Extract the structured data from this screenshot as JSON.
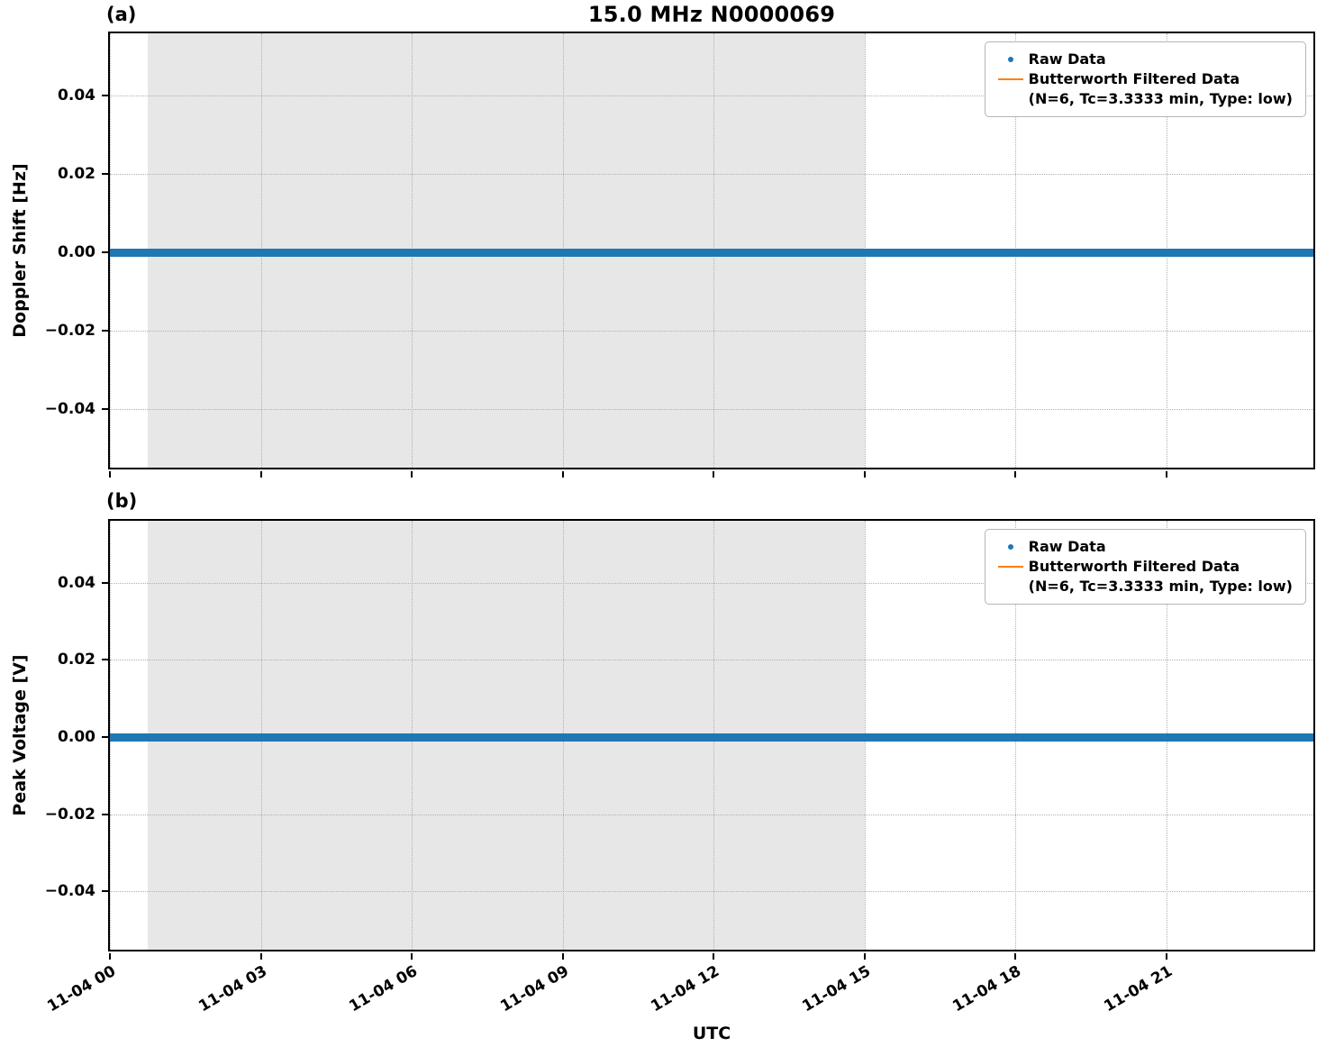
{
  "figure": {
    "title": "15.0 MHz N0000069",
    "xlabel": "UTC",
    "background": "#ffffff"
  },
  "colors": {
    "raw": "#1f77b4",
    "filtered": "#ff7f0e",
    "shade": "#e7e7e7",
    "grid": "#b0b0b0",
    "axis": "#000000"
  },
  "legend": {
    "entries": [
      {
        "marker": "dot",
        "color": "#1f77b4",
        "label": "Raw Data"
      },
      {
        "marker": "line",
        "color": "#ff7f0e",
        "label": "Butterworth Filtered Data",
        "sublabel": "(N=6, Tc=3.3333 min, Type: low)"
      }
    ]
  },
  "chart_data": [
    {
      "type": "scatter",
      "panel_label": "(a)",
      "title": "15.0 MHz N0000069",
      "xlabel": "UTC",
      "ylabel": "Doppler Shift [Hz]",
      "x_tick_labels": [
        "11-04 00",
        "11-04 03",
        "11-04 06",
        "11-04 09",
        "11-04 12",
        "11-04 15",
        "11-04 18",
        "11-04 21"
      ],
      "x_tick_hours": [
        0,
        3,
        6,
        9,
        12,
        15,
        18,
        21
      ],
      "xlim_hours": [
        0,
        24
      ],
      "y_tick_labels": [
        "0.04",
        "0.02",
        "0.00",
        "−0.02",
        "−0.04"
      ],
      "y_tick_values": [
        0.04,
        0.02,
        0.0,
        -0.02,
        -0.04
      ],
      "ylim": [
        -0.056,
        0.056
      ],
      "grid": true,
      "legend_position": "upper right",
      "shaded_region_hours": [
        0.75,
        15
      ],
      "series": [
        {
          "name": "Raw Data",
          "type": "scatter",
          "color": "#1f77b4",
          "y_constant": 0.0,
          "x_span_hours": [
            0,
            24
          ]
        },
        {
          "name": "Butterworth Filtered Data (N=6, Tc=3.3333 min, Type: low)",
          "type": "line",
          "color": "#ff7f0e",
          "y_constant": 0.0,
          "x_span_hours": [
            0,
            24
          ]
        }
      ]
    },
    {
      "type": "scatter",
      "panel_label": "(b)",
      "title": "",
      "xlabel": "UTC",
      "ylabel": "Peak Voltage [V]",
      "x_tick_labels": [
        "11-04 00",
        "11-04 03",
        "11-04 06",
        "11-04 09",
        "11-04 12",
        "11-04 15",
        "11-04 18",
        "11-04 21"
      ],
      "x_tick_hours": [
        0,
        3,
        6,
        9,
        12,
        15,
        18,
        21
      ],
      "xlim_hours": [
        0,
        24
      ],
      "y_tick_labels": [
        "0.04",
        "0.02",
        "0.00",
        "−0.02",
        "−0.04"
      ],
      "y_tick_values": [
        0.04,
        0.02,
        0.0,
        -0.02,
        -0.04
      ],
      "ylim": [
        -0.056,
        0.056
      ],
      "grid": true,
      "legend_position": "upper right",
      "shaded_region_hours": [
        0.75,
        15
      ],
      "series": [
        {
          "name": "Raw Data",
          "type": "scatter",
          "color": "#1f77b4",
          "y_constant": 0.0,
          "x_span_hours": [
            0,
            24
          ]
        },
        {
          "name": "Butterworth Filtered Data (N=6, Tc=3.3333 min, Type: low)",
          "type": "line",
          "color": "#ff7f0e",
          "y_constant": 0.0,
          "x_span_hours": [
            0,
            24
          ]
        }
      ]
    }
  ]
}
